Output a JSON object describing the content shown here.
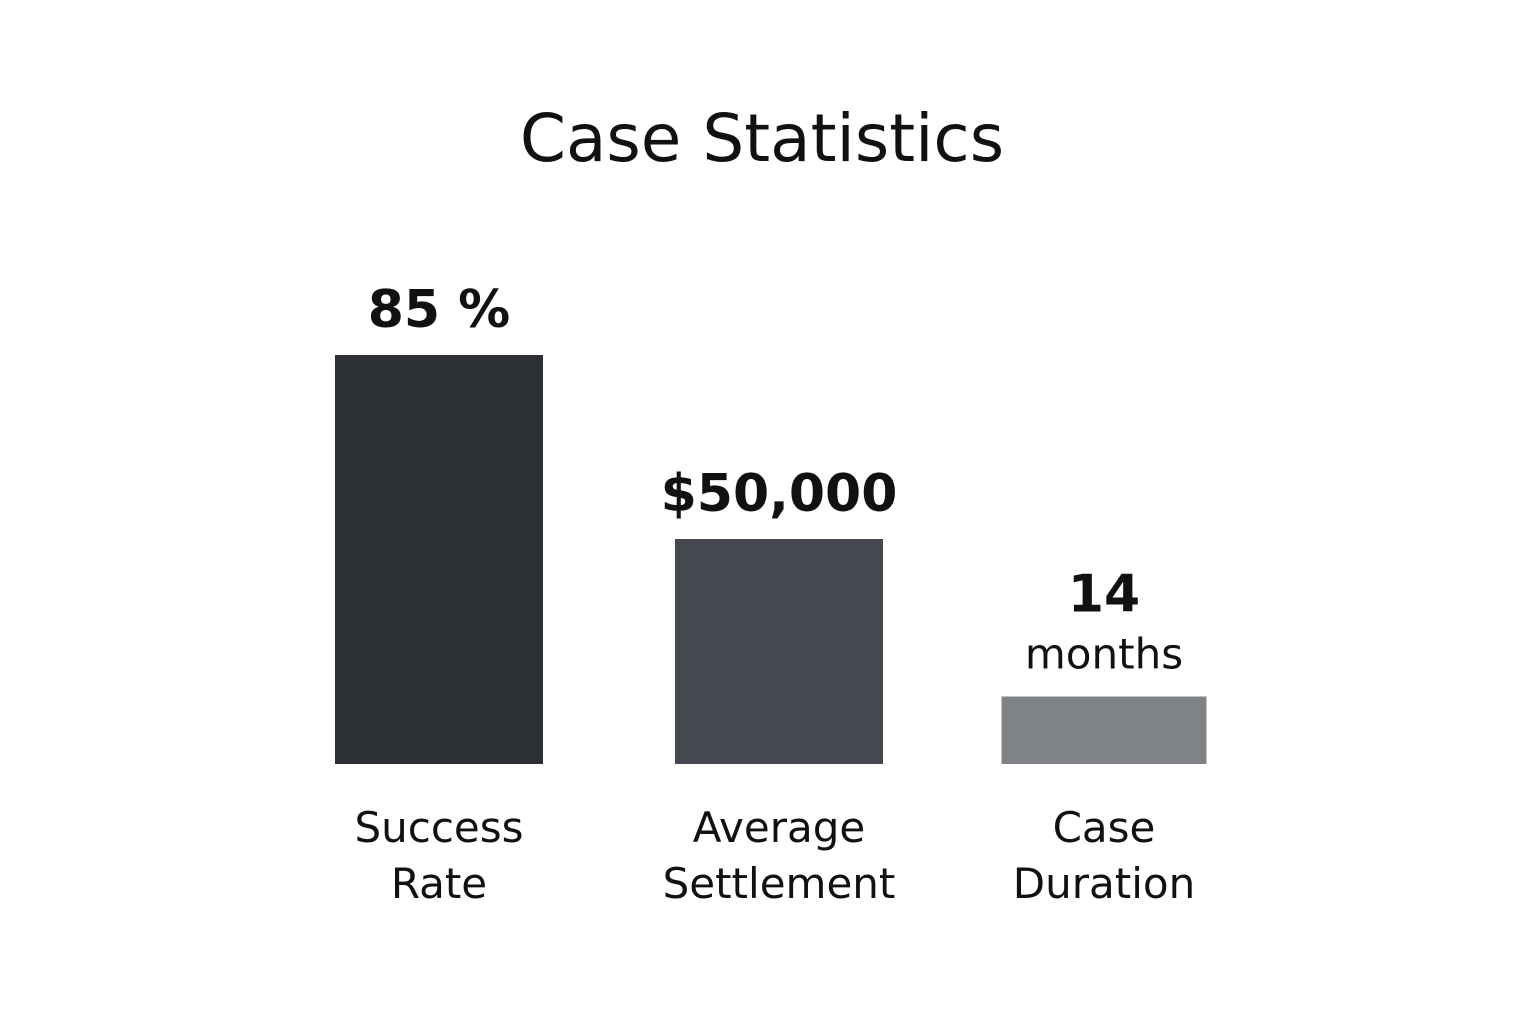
{
  "chart_data": {
    "type": "bar",
    "title": "Case Statistics",
    "categories": [
      [
        "Success",
        "Rate"
      ],
      [
        "Average",
        "Settlement"
      ],
      [
        "Case",
        "Duration"
      ]
    ],
    "value_labels": [
      [
        "85 %"
      ],
      [
        "$50,000"
      ],
      [
        "14",
        "months"
      ]
    ],
    "values": [
      85,
      50000,
      14
    ],
    "relative_heights": [
      1.0,
      0.55,
      0.165
    ],
    "colors": [
      "#2c3034",
      "#45494f",
      "#7f8387"
    ],
    "grid": false,
    "legend": "none"
  }
}
